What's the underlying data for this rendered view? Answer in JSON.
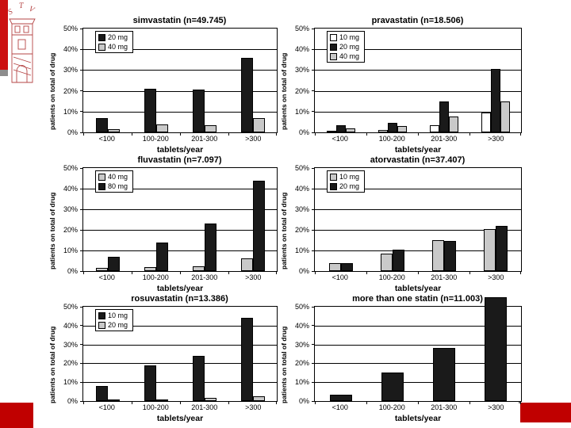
{
  "slide": {
    "logo": {
      "letters": [
        "S",
        "T",
        "V"
      ]
    },
    "colors": {
      "accent_red": "#c00000",
      "left_bar_red": "#cc1111",
      "gray_line": "#6e6e6e",
      "bar_black": "#1a1a1a",
      "bar_gray": "#c9c9c9",
      "bar_white": "#ffffff"
    }
  },
  "chart_data": [
    {
      "type": "bar",
      "title": "simvastatin (n=49.745)",
      "categories": [
        "<100",
        "100-200",
        "201-300",
        ">300"
      ],
      "xlabel": "tablets/year",
      "ylabel": "patients on total of drug",
      "ylim": [
        0,
        50
      ],
      "yticks": [
        "50%",
        "40%",
        "30%",
        "20%",
        "10%",
        "0%"
      ],
      "grid": true,
      "legend_position": "top-left",
      "legend": true,
      "series": [
        {
          "name": "20 mg",
          "color": "#1a1a1a",
          "values": [
            7,
            21,
            20.5,
            36
          ]
        },
        {
          "name": "40 mg",
          "color": "#c9c9c9",
          "values": [
            1.5,
            4,
            3.5,
            7
          ]
        }
      ]
    },
    {
      "type": "bar",
      "title": "pravastatin (n=18.506)",
      "categories": [
        "<100",
        "100-200",
        "201-300",
        ">300"
      ],
      "xlabel": "tablets/year",
      "ylabel": "patients on total of drug",
      "ylim": [
        0,
        50
      ],
      "yticks": [
        "50%",
        "40%",
        "30%",
        "20%",
        "10%",
        "0%"
      ],
      "grid": true,
      "legend_position": "top-left",
      "legend": true,
      "series": [
        {
          "name": "10 mg",
          "color": "#ffffff",
          "values": [
            0.5,
            1,
            3.5,
            9.5
          ]
        },
        {
          "name": "20 mg",
          "color": "#1a1a1a",
          "values": [
            3.5,
            4.5,
            15,
            30.5
          ]
        },
        {
          "name": "40 mg",
          "color": "#c9c9c9",
          "values": [
            2,
            3,
            7.5,
            15
          ]
        }
      ]
    },
    {
      "type": "bar",
      "title": "fluvastatin (n=7.097)",
      "categories": [
        "<100",
        "100-200",
        "201-300",
        ">300"
      ],
      "xlabel": "tablets/year",
      "ylabel": "patients on total of drug",
      "ylim": [
        0,
        50
      ],
      "yticks": [
        "50%",
        "40%",
        "30%",
        "20%",
        "10%",
        "0%"
      ],
      "grid": true,
      "legend_position": "top-left",
      "legend": true,
      "series": [
        {
          "name": "40 mg",
          "color": "#c9c9c9",
          "values": [
            1.5,
            2,
            2.5,
            6
          ]
        },
        {
          "name": "80 mg",
          "color": "#1a1a1a",
          "values": [
            7,
            14,
            23,
            44
          ]
        }
      ]
    },
    {
      "type": "bar",
      "title": "atorvastatin (n=37.407)",
      "categories": [
        "<100",
        "100-200",
        "201-300",
        ">300"
      ],
      "xlabel": "tablets/year",
      "ylabel": "patients on total of drug",
      "ylim": [
        0,
        50
      ],
      "yticks": [
        "50%",
        "40%",
        "30%",
        "20%",
        "10%",
        "0%"
      ],
      "grid": true,
      "legend_position": "top-left",
      "legend": true,
      "series": [
        {
          "name": "10 mg",
          "color": "#c9c9c9",
          "values": [
            4,
            8.5,
            15,
            20.5
          ]
        },
        {
          "name": "20 mg",
          "color": "#1a1a1a",
          "values": [
            4,
            10.5,
            14.5,
            22
          ]
        }
      ]
    },
    {
      "type": "bar",
      "title": "rosuvastatin (n=13.386)",
      "categories": [
        "<100",
        "100-200",
        "201-300",
        ">300"
      ],
      "xlabel": "tablets/year",
      "ylabel": "patients on total of drug",
      "ylim": [
        0,
        50
      ],
      "yticks": [
        "50%",
        "40%",
        "30%",
        "20%",
        "10%",
        "0%"
      ],
      "grid": true,
      "legend_position": "top-left",
      "legend": true,
      "series": [
        {
          "name": "10 mg",
          "color": "#1a1a1a",
          "values": [
            8,
            19,
            24,
            44
          ]
        },
        {
          "name": "20 mg",
          "color": "#c9c9c9",
          "values": [
            0.5,
            0.5,
            1.5,
            2.5
          ]
        }
      ]
    },
    {
      "type": "bar",
      "title": "more than one statin (n=11.003)",
      "categories": [
        "<100",
        "100-200",
        "201-300",
        ">300"
      ],
      "xlabel": "tablets/year",
      "ylabel": "patients on total of drug",
      "ylim": [
        0,
        50
      ],
      "yticks": [
        "50%",
        "40%",
        "30%",
        "20%",
        "10%",
        "0%"
      ],
      "grid": true,
      "legend": false,
      "series": [
        {
          "name": "",
          "color": "#1a1a1a",
          "values": [
            3.5,
            15,
            28,
            55
          ]
        }
      ]
    }
  ]
}
